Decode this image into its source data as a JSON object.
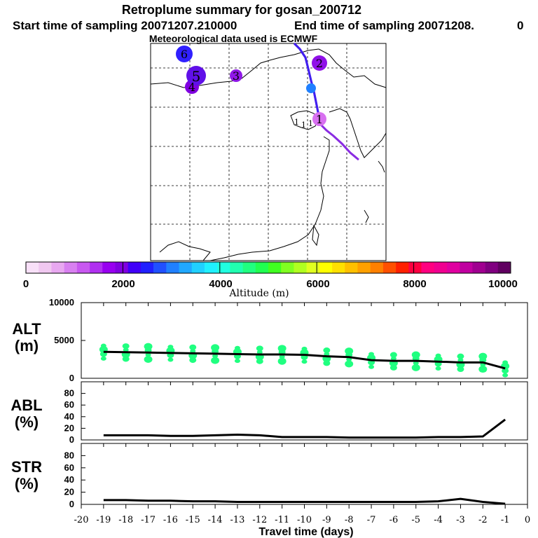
{
  "header": {
    "title": "Retroplume summary for gosan_200712",
    "start_label": "Start time of sampling 20071207.210000",
    "end_label": "End time of sampling 20071208.",
    "end_suffix": "0",
    "met_label": "Meteorological data used is ECMWF"
  },
  "map": {
    "plume_labels": [
      "1",
      "2",
      "3",
      "4",
      "5",
      "6"
    ]
  },
  "colorbar": {
    "ticks": [
      "0",
      "2000",
      "4000",
      "6000",
      "8000",
      "10000"
    ],
    "label": "Altitude (m)",
    "colors": [
      "#f8e0f8",
      "#f0c8f0",
      "#e8a8f0",
      "#d880f0",
      "#c858f0",
      "#b030f0",
      "#9800f0",
      "#8000e0",
      "#4000f8",
      "#2020ff",
      "#2050ff",
      "#2080ff",
      "#20a8ff",
      "#20d0ff",
      "#20f0ff",
      "#20ffe0",
      "#20ffb0",
      "#20ff80",
      "#20ff50",
      "#40ff20",
      "#80ff20",
      "#b0ff20",
      "#e0ff20",
      "#ffff00",
      "#ffe000",
      "#ffc000",
      "#ffa000",
      "#ff8000",
      "#ff5000",
      "#ff2000",
      "#ff0040",
      "#ff0080",
      "#f00090",
      "#e000a0",
      "#c000a0",
      "#a00090",
      "#800080",
      "#600060"
    ]
  },
  "chart_data": [
    {
      "type": "scatter",
      "name": "ALT",
      "ylabel_line1": "ALT",
      "ylabel_line2": "(m)",
      "ylim": [
        0,
        10000
      ],
      "yticks": [
        "10000",
        "5000",
        "0"
      ],
      "x": [
        -19,
        -18,
        -17,
        -16,
        -15,
        -14,
        -13,
        -12,
        -11,
        -10,
        -9,
        -8,
        -7,
        -6,
        -5,
        -4,
        -3,
        -2,
        -1
      ],
      "mean_line": [
        3500,
        3450,
        3400,
        3350,
        3300,
        3250,
        3200,
        3150,
        3150,
        3100,
        2900,
        2800,
        2400,
        2300,
        2300,
        2200,
        2100,
        2100,
        1300
      ],
      "marker_color": "#20ff80"
    },
    {
      "type": "line",
      "name": "ABL",
      "ylabel_line1": "ABL",
      "ylabel_line2": "(%)",
      "ylim": [
        0,
        100
      ],
      "yticks": [
        "80",
        "60",
        "40",
        "20",
        "0"
      ],
      "x": [
        -19,
        -18,
        -17,
        -16,
        -15,
        -14,
        -13,
        -12,
        -11,
        -10,
        -9,
        -8,
        -7,
        -6,
        -5,
        -4,
        -3,
        -2,
        -1
      ],
      "values": [
        8,
        8,
        8,
        7,
        7,
        8,
        9,
        8,
        5,
        5,
        5,
        4,
        4,
        4,
        4,
        5,
        5,
        6,
        35
      ]
    },
    {
      "type": "line",
      "name": "STR",
      "ylabel_line1": "STR",
      "ylabel_line2": "(%)",
      "ylim": [
        0,
        100
      ],
      "yticks": [
        "80",
        "60",
        "40",
        "20",
        "0"
      ],
      "x": [
        -19,
        -18,
        -17,
        -16,
        -15,
        -14,
        -13,
        -12,
        -11,
        -10,
        -9,
        -8,
        -7,
        -6,
        -5,
        -4,
        -3,
        -2,
        -1
      ],
      "values": [
        7,
        7,
        6,
        6,
        5,
        5,
        4,
        4,
        4,
        4,
        4,
        4,
        4,
        4,
        4,
        5,
        9,
        4,
        1
      ]
    }
  ],
  "xaxis": {
    "ticks": [
      "-20",
      "-19",
      "-18",
      "-17",
      "-16",
      "-15",
      "-14",
      "-13",
      "-12",
      "-11",
      "-10",
      "-9",
      "-8",
      "-7",
      "-6",
      "-5",
      "-4",
      "-3",
      "-2",
      "-1",
      "0"
    ],
    "label": "Travel time (days)"
  }
}
